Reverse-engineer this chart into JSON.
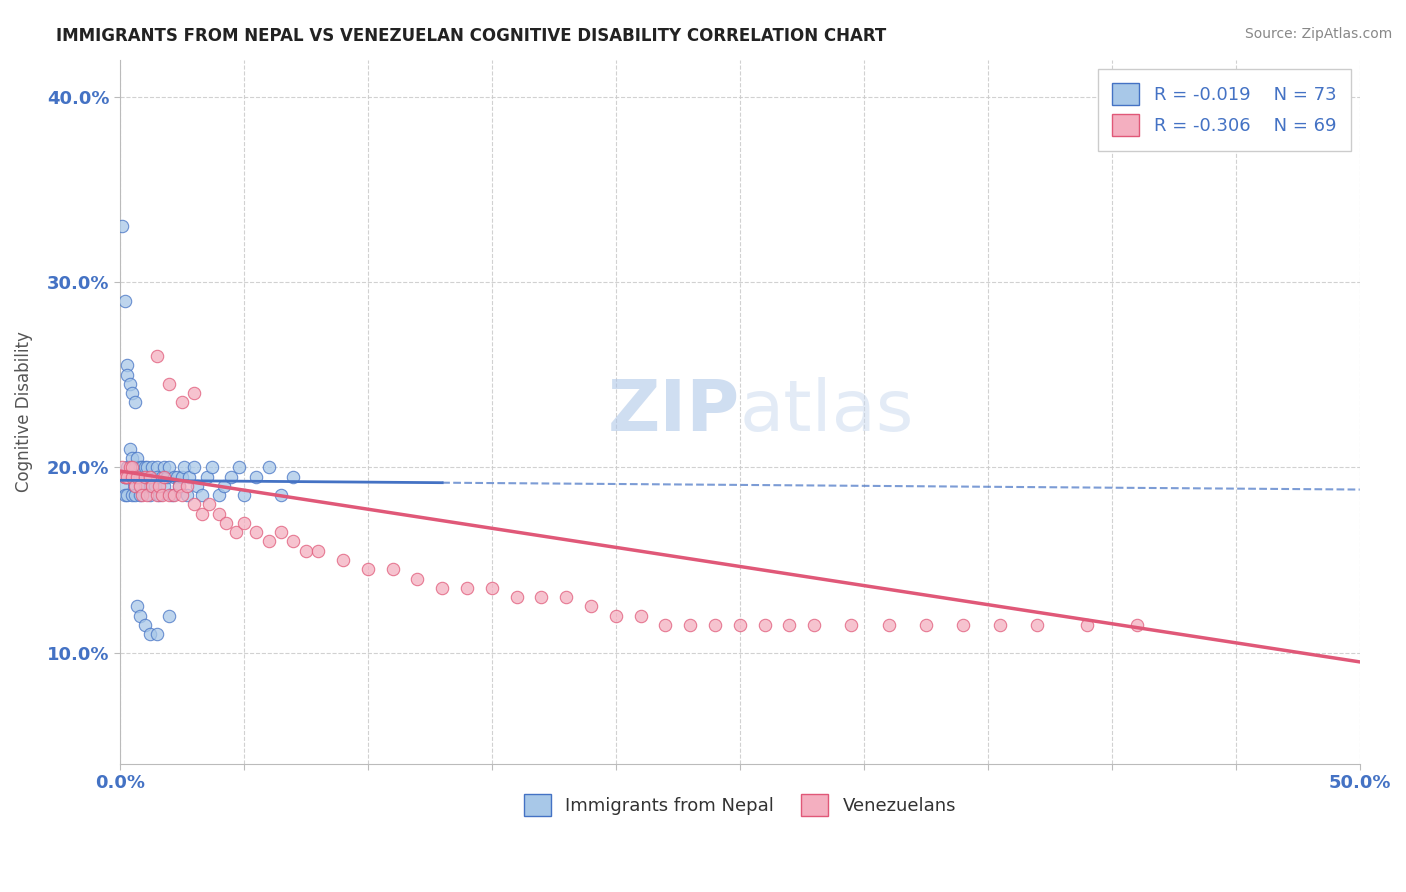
{
  "title": "IMMIGRANTS FROM NEPAL VS VENEZUELAN COGNITIVE DISABILITY CORRELATION CHART",
  "source": "Source: ZipAtlas.com",
  "ylabel": "Cognitive Disability",
  "xlim": [
    0.0,
    0.5
  ],
  "ylim": [
    0.04,
    0.42
  ],
  "yticks": [
    0.1,
    0.2,
    0.3,
    0.4
  ],
  "ytick_labels": [
    "10.0%",
    "20.0%",
    "30.0%",
    "40.0%"
  ],
  "xtick_labels_show": [
    "0.0%",
    "50.0%"
  ],
  "legend_r": [
    "R = -0.019",
    "R = -0.306"
  ],
  "legend_n": [
    "N = 73",
    "N = 69"
  ],
  "legend_labels": [
    "Immigrants from Nepal",
    "Venezuelans"
  ],
  "scatter_blue_color": "#a8c8e8",
  "scatter_pink_color": "#f4afc0",
  "line_blue_color": "#4472c4",
  "line_pink_color": "#e05878",
  "background_color": "#ffffff",
  "grid_color": "#cccccc",
  "nepal_x": [
    0.001,
    0.002,
    0.002,
    0.003,
    0.003,
    0.003,
    0.004,
    0.004,
    0.005,
    0.005,
    0.005,
    0.006,
    0.006,
    0.006,
    0.007,
    0.007,
    0.008,
    0.008,
    0.008,
    0.009,
    0.009,
    0.01,
    0.01,
    0.011,
    0.011,
    0.012,
    0.012,
    0.013,
    0.013,
    0.014,
    0.015,
    0.015,
    0.016,
    0.017,
    0.018,
    0.018,
    0.019,
    0.02,
    0.021,
    0.022,
    0.023,
    0.024,
    0.025,
    0.026,
    0.027,
    0.028,
    0.03,
    0.031,
    0.033,
    0.035,
    0.037,
    0.04,
    0.042,
    0.045,
    0.048,
    0.05,
    0.055,
    0.06,
    0.065,
    0.07,
    0.001,
    0.002,
    0.003,
    0.003,
    0.004,
    0.005,
    0.006,
    0.007,
    0.008,
    0.01,
    0.012,
    0.015,
    0.02
  ],
  "nepal_y": [
    0.19,
    0.195,
    0.185,
    0.2,
    0.195,
    0.185,
    0.21,
    0.195,
    0.205,
    0.185,
    0.195,
    0.2,
    0.19,
    0.185,
    0.195,
    0.205,
    0.2,
    0.185,
    0.195,
    0.195,
    0.2,
    0.19,
    0.2,
    0.195,
    0.2,
    0.185,
    0.19,
    0.195,
    0.2,
    0.19,
    0.2,
    0.195,
    0.185,
    0.195,
    0.2,
    0.19,
    0.195,
    0.2,
    0.185,
    0.195,
    0.195,
    0.19,
    0.195,
    0.2,
    0.185,
    0.195,
    0.2,
    0.19,
    0.185,
    0.195,
    0.2,
    0.185,
    0.19,
    0.195,
    0.2,
    0.185,
    0.195,
    0.2,
    0.185,
    0.195,
    0.33,
    0.29,
    0.255,
    0.25,
    0.245,
    0.24,
    0.235,
    0.125,
    0.12,
    0.115,
    0.11,
    0.11,
    0.12
  ],
  "venezuela_x": [
    0.001,
    0.002,
    0.002,
    0.003,
    0.004,
    0.005,
    0.005,
    0.006,
    0.007,
    0.008,
    0.009,
    0.01,
    0.011,
    0.012,
    0.013,
    0.015,
    0.016,
    0.017,
    0.018,
    0.02,
    0.022,
    0.024,
    0.025,
    0.027,
    0.03,
    0.033,
    0.036,
    0.04,
    0.043,
    0.047,
    0.05,
    0.055,
    0.06,
    0.065,
    0.07,
    0.075,
    0.08,
    0.09,
    0.1,
    0.11,
    0.12,
    0.13,
    0.14,
    0.15,
    0.16,
    0.17,
    0.18,
    0.19,
    0.2,
    0.21,
    0.22,
    0.23,
    0.24,
    0.25,
    0.26,
    0.27,
    0.28,
    0.295,
    0.31,
    0.325,
    0.34,
    0.355,
    0.37,
    0.39,
    0.41,
    0.015,
    0.02,
    0.025,
    0.03
  ],
  "venezuela_y": [
    0.2,
    0.195,
    0.195,
    0.195,
    0.2,
    0.2,
    0.195,
    0.19,
    0.195,
    0.19,
    0.185,
    0.195,
    0.185,
    0.195,
    0.19,
    0.185,
    0.19,
    0.185,
    0.195,
    0.185,
    0.185,
    0.19,
    0.185,
    0.19,
    0.18,
    0.175,
    0.18,
    0.175,
    0.17,
    0.165,
    0.17,
    0.165,
    0.16,
    0.165,
    0.16,
    0.155,
    0.155,
    0.15,
    0.145,
    0.145,
    0.14,
    0.135,
    0.135,
    0.135,
    0.13,
    0.13,
    0.13,
    0.125,
    0.12,
    0.12,
    0.115,
    0.115,
    0.115,
    0.115,
    0.115,
    0.115,
    0.115,
    0.115,
    0.115,
    0.115,
    0.115,
    0.115,
    0.115,
    0.115,
    0.115,
    0.26,
    0.245,
    0.235,
    0.24
  ],
  "nepal_trend_x0": 0.0,
  "nepal_trend_x1": 0.5,
  "nepal_trend_y0": 0.193,
  "nepal_trend_y1": 0.188,
  "venezuela_trend_x0": 0.0,
  "venezuela_trend_x1": 0.5,
  "venezuela_trend_y0": 0.198,
  "venezuela_trend_y1": 0.095
}
